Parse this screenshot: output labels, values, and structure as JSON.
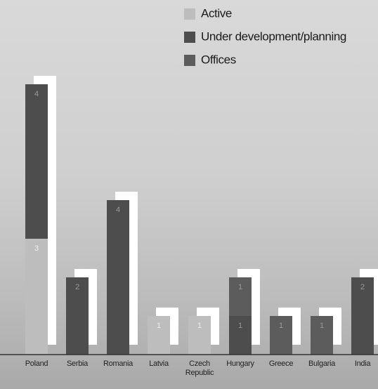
{
  "chart_data": {
    "type": "stacked-bar",
    "categories": [
      "Poland",
      "Serbia",
      "Romania",
      "Latvia",
      "Czech Republic",
      "Hungary",
      "Greece",
      "Bulgaria",
      "India"
    ],
    "series": [
      {
        "name": "Active",
        "color": "#bdbdbd",
        "values": [
          3,
          null,
          null,
          1,
          1,
          null,
          null,
          null,
          null
        ]
      },
      {
        "name": "Under development/planning",
        "color": "#4d4d4d",
        "values": [
          4,
          2,
          4,
          null,
          null,
          1,
          null,
          null,
          2
        ]
      },
      {
        "name": "Offices",
        "color": "#5c5c5c",
        "values": [
          null,
          null,
          null,
          null,
          null,
          1,
          1,
          1,
          null
        ]
      }
    ]
  }
}
